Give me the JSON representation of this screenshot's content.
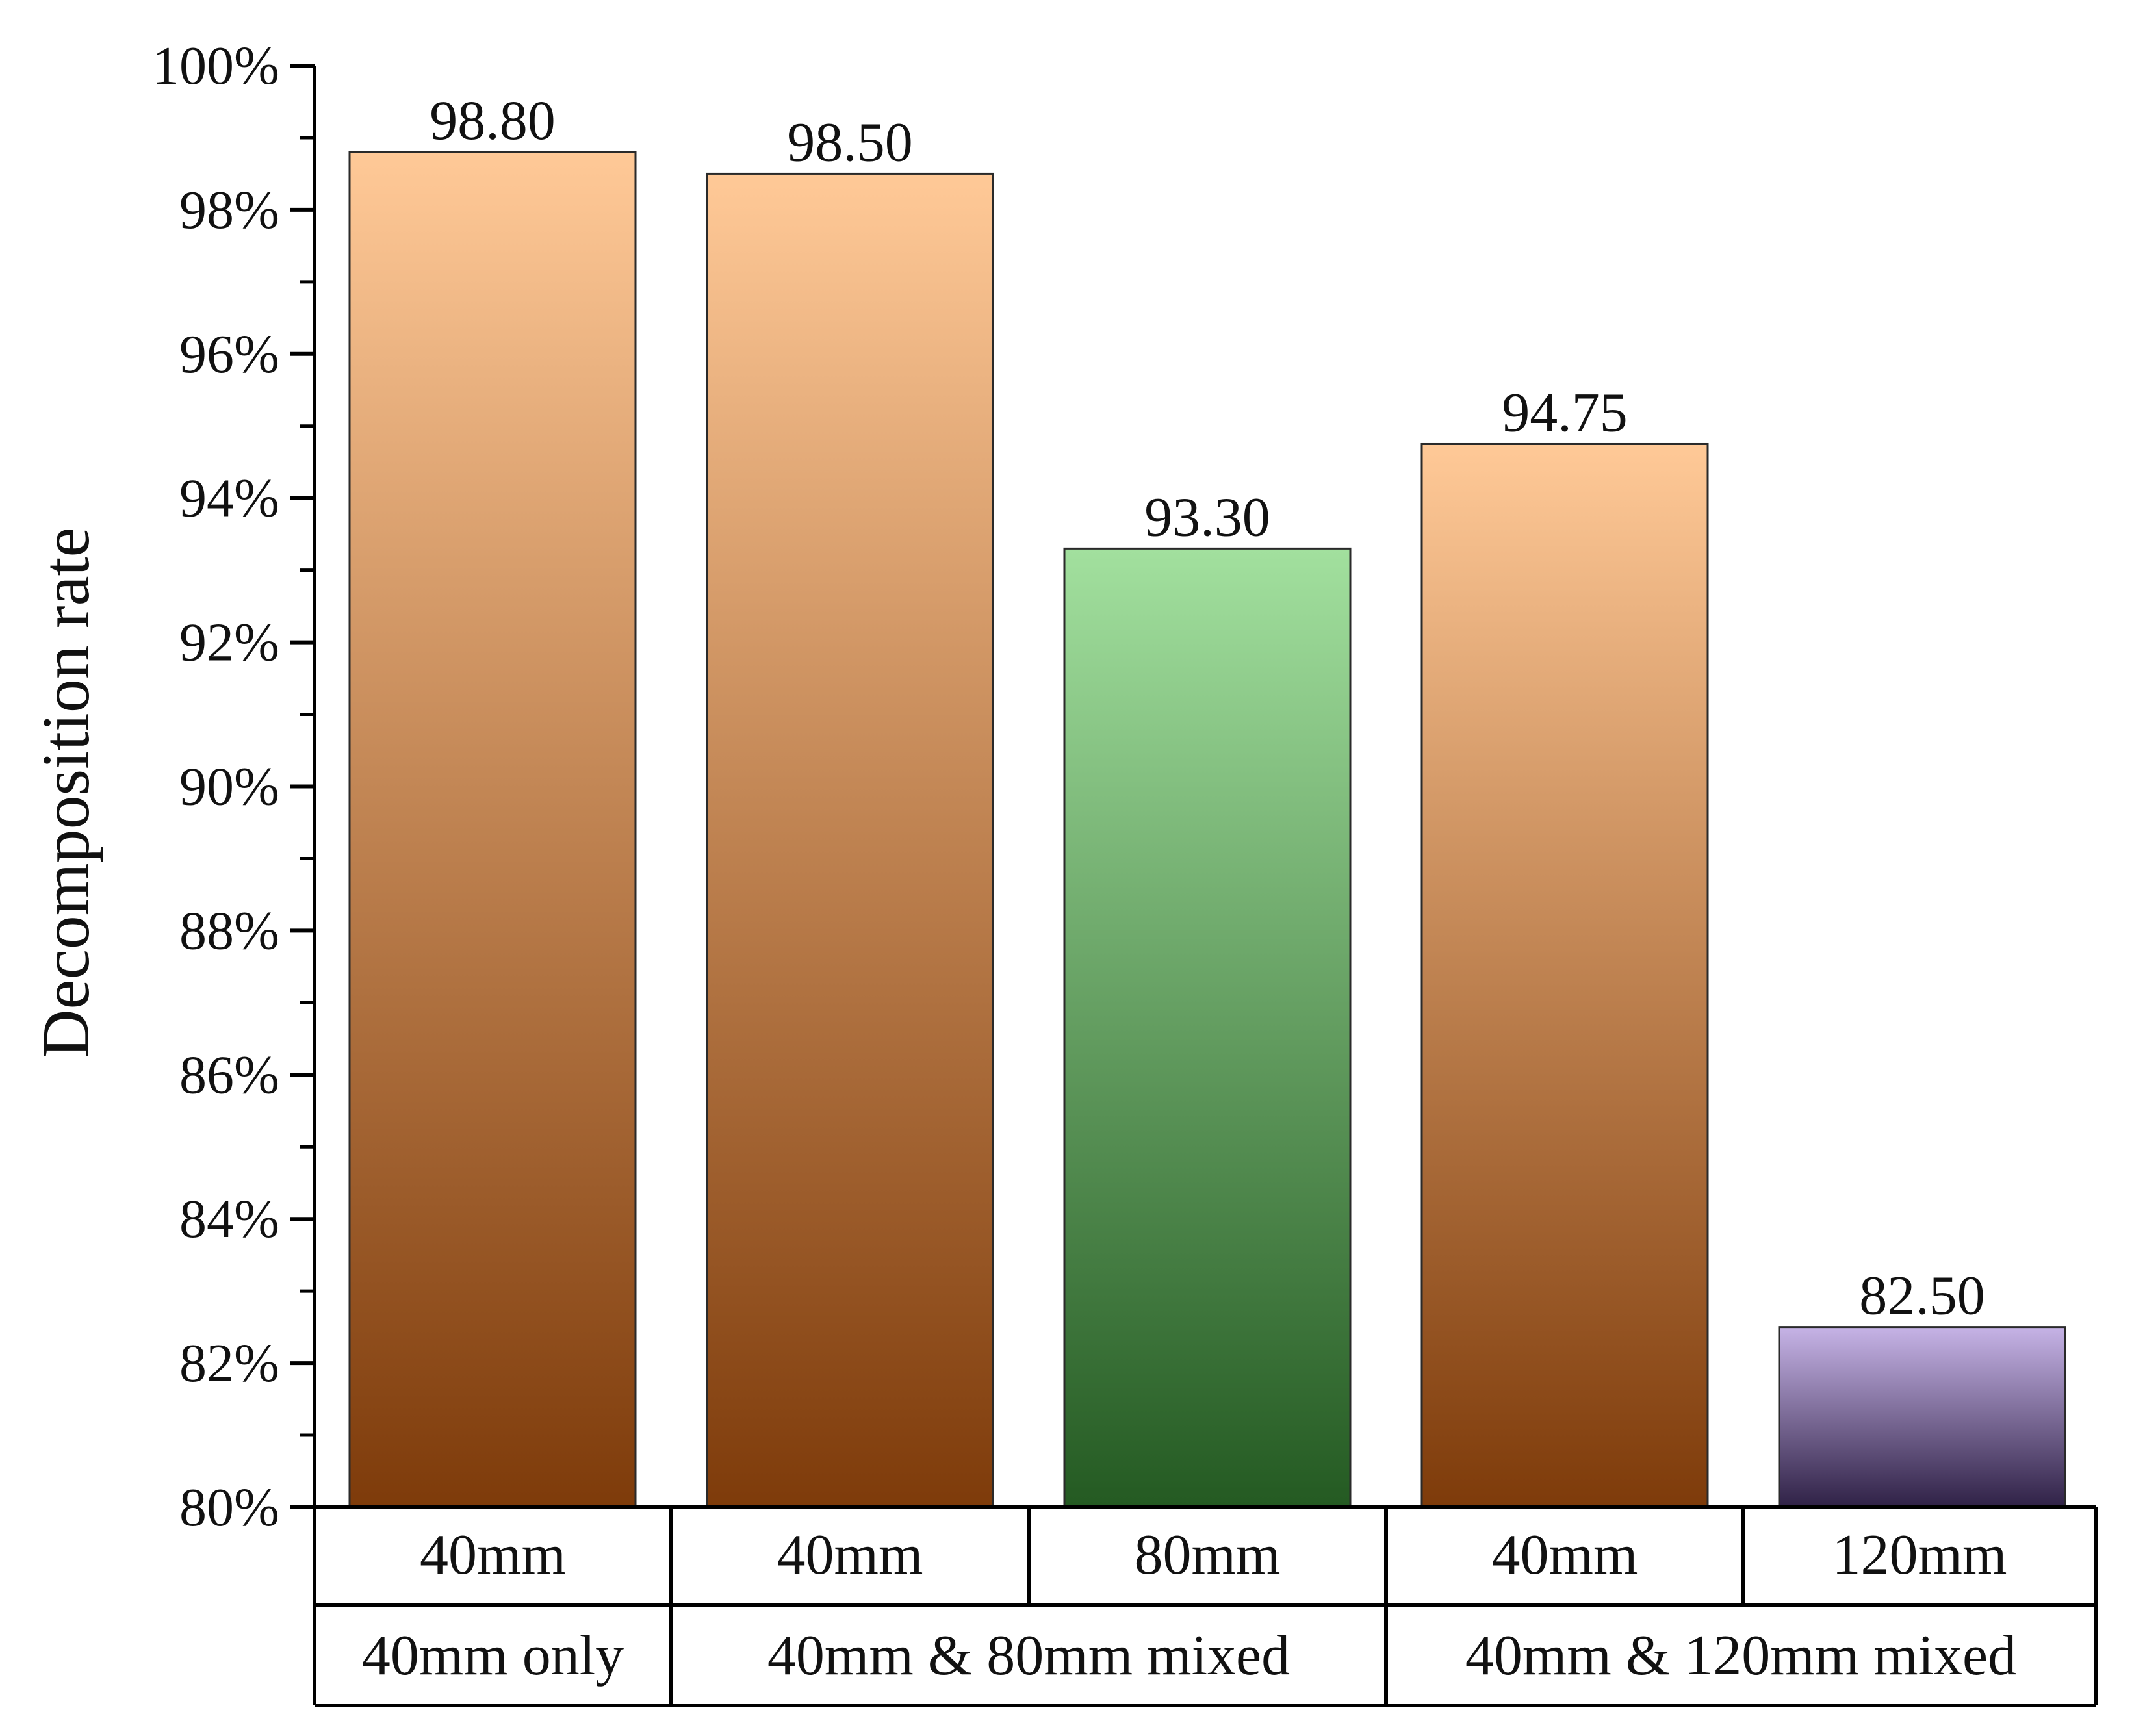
{
  "chart_data": {
    "type": "bar",
    "ylabel": "Decomposition rate",
    "ylim": [
      80,
      100
    ],
    "y_tick_values": [
      80,
      82,
      84,
      86,
      88,
      90,
      92,
      94,
      96,
      98,
      100
    ],
    "y_tick_labels": [
      "80%",
      "82%",
      "84%",
      "86%",
      "88%",
      "90%",
      "92%",
      "94%",
      "96%",
      "98%",
      "100%"
    ],
    "y_minor_step": 1,
    "grid": false,
    "bars": [
      {
        "category": "40mm",
        "value": 98.8,
        "label": "98.80",
        "style": "brown"
      },
      {
        "category": "40mm",
        "value": 98.5,
        "label": "98.50",
        "style": "brown"
      },
      {
        "category": "80mm",
        "value": 93.3,
        "label": "93.30",
        "style": "green"
      },
      {
        "category": "40mm",
        "value": 94.75,
        "label": "94.75",
        "style": "brown"
      },
      {
        "category": "120mm",
        "value": 82.5,
        "label": "82.50",
        "style": "purple"
      }
    ],
    "groups": [
      {
        "label": "40mm only",
        "bar_indices": [
          0
        ]
      },
      {
        "label": "40mm & 80mm mixed",
        "bar_indices": [
          1,
          2
        ]
      },
      {
        "label": "40mm & 120mm mixed",
        "bar_indices": [
          3,
          4
        ]
      }
    ],
    "colors": {
      "brown_top": "#FFC997",
      "brown_bottom": "#7E3B0A",
      "green_top": "#A2E09E",
      "green_bottom": "#245A22",
      "purple_top": "#C6B3E6",
      "purple_bottom": "#2F2146",
      "outline": "#2a2a2a"
    }
  }
}
